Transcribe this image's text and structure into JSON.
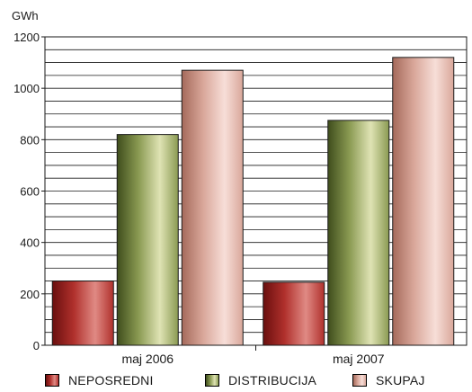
{
  "chart_data": {
    "type": "bar",
    "ylabel": "GWh",
    "ylim": [
      0,
      1200
    ],
    "yticks": [
      0,
      200,
      400,
      600,
      800,
      1000,
      1200
    ],
    "minor_grid_step": 50,
    "grid": true,
    "legend_position": "bottom",
    "categories": [
      "maj 2006",
      "maj 2007"
    ],
    "series": [
      {
        "name": "NEPOSREDNI",
        "values": [
          250,
          245
        ],
        "color_light": "#e08a84",
        "color_mid": "#b0302c",
        "color_dark": "#6a0f0e"
      },
      {
        "name": "DISTRIBUCIJA",
        "values": [
          820,
          875
        ],
        "color_light": "#dfe3b4",
        "color_mid": "#8a9a52",
        "color_dark": "#3f4d1c"
      },
      {
        "name": "SKUPAJ",
        "values": [
          1070,
          1120
        ],
        "color_light": "#f7ded8",
        "color_mid": "#d9a79a",
        "color_dark": "#a56a5b"
      }
    ]
  }
}
